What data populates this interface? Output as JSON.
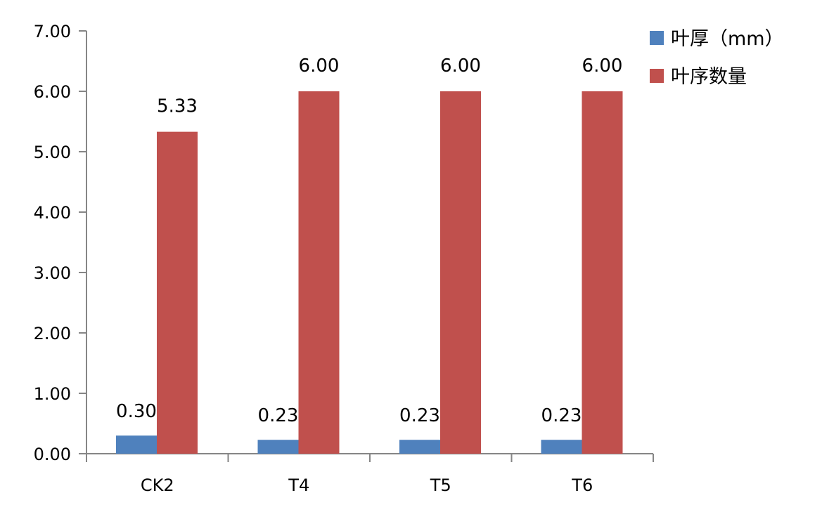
{
  "chart_data": {
    "type": "bar",
    "categories": [
      "CK2",
      "T4",
      "T5",
      "T6"
    ],
    "series": [
      {
        "name": "叶厚（mm）",
        "values": [
          0.3,
          0.23,
          0.23,
          0.23
        ],
        "labels": [
          "0.30",
          "0.23",
          "0.23",
          "0.23"
        ],
        "color": "#4F81BD"
      },
      {
        "name": "叶序数量",
        "values": [
          5.33,
          6.0,
          6.0,
          6.0
        ],
        "labels": [
          "5.33",
          "6.00",
          "6.00",
          "6.00"
        ],
        "color": "#C0504D"
      }
    ],
    "ylim": [
      0,
      7
    ],
    "yticks": [
      "0.00",
      "1.00",
      "2.00",
      "3.00",
      "4.00",
      "5.00",
      "6.00",
      "7.00"
    ],
    "grid": false,
    "legend_position": "top-right",
    "title": "",
    "xlabel": "",
    "ylabel": ""
  }
}
